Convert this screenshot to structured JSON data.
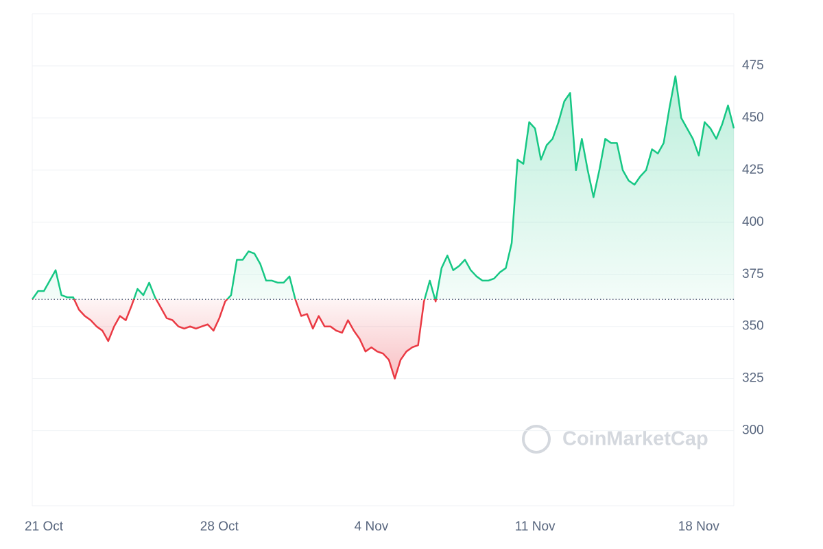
{
  "chart_data": {
    "type": "line",
    "categories": [
      null,
      null,
      "21 Oct",
      null,
      null,
      null,
      null,
      null,
      null,
      null,
      null,
      null,
      null,
      null,
      null,
      null,
      null,
      null,
      null,
      null,
      null,
      null,
      null,
      null,
      null,
      null,
      null,
      null,
      null,
      null,
      null,
      null,
      "28 Oct",
      null,
      null,
      null,
      null,
      null,
      null,
      null,
      null,
      null,
      null,
      null,
      null,
      null,
      null,
      null,
      null,
      null,
      null,
      null,
      null,
      null,
      null,
      null,
      null,
      null,
      "4 Nov",
      null,
      null,
      null,
      null,
      null,
      null,
      null,
      null,
      null,
      null,
      null,
      null,
      null,
      null,
      null,
      null,
      null,
      null,
      null,
      null,
      null,
      null,
      null,
      null,
      null,
      null,
      null,
      "11 Nov",
      null,
      null,
      null,
      null,
      null,
      null,
      null,
      null,
      null,
      null,
      null,
      null,
      null,
      null,
      null,
      null,
      null,
      null,
      null,
      null,
      null,
      null,
      null,
      null,
      null,
      null,
      null,
      "18 Nov",
      null,
      null,
      null,
      null,
      null,
      null
    ],
    "values": [
      363,
      367,
      367,
      372,
      377,
      365,
      364,
      364,
      358,
      355,
      353,
      350,
      348,
      343,
      350,
      355,
      353,
      360,
      368,
      365,
      371,
      364,
      359,
      354,
      353,
      350,
      349,
      350,
      349,
      350,
      351,
      348,
      354,
      362,
      365,
      382,
      382,
      386,
      385,
      380,
      372,
      372,
      371,
      371,
      374,
      363,
      355,
      356,
      349,
      355,
      350,
      350,
      348,
      347,
      353,
      348,
      344,
      338,
      340,
      338,
      337,
      334,
      325,
      334,
      338,
      340,
      341,
      362,
      372,
      362,
      378,
      384,
      377,
      379,
      382,
      377,
      374,
      372,
      372,
      373,
      376,
      378,
      390,
      430,
      428,
      448,
      445,
      430,
      437,
      440,
      448,
      458,
      462,
      425,
      440,
      425,
      412,
      425,
      440,
      438,
      438,
      425,
      420,
      418,
      422,
      425,
      435,
      433,
      438,
      455,
      470,
      450,
      445,
      440,
      432,
      448,
      445,
      440,
      447,
      456,
      445
    ],
    "baseline": 363,
    "up_color": "#16c784",
    "down_color": "#ea3943",
    "ylim": [
      264,
      500
    ],
    "yticks": [
      300,
      325,
      350,
      375,
      400,
      425,
      450,
      475
    ],
    "grid": true,
    "watermark": "CoinMarketCap"
  }
}
